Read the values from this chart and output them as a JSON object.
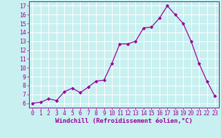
{
  "x": [
    0,
    1,
    2,
    3,
    4,
    5,
    6,
    7,
    8,
    9,
    10,
    11,
    12,
    13,
    14,
    15,
    16,
    17,
    18,
    19,
    20,
    21,
    22,
    23
  ],
  "y": [
    6.0,
    6.1,
    6.5,
    6.3,
    7.3,
    7.7,
    7.2,
    7.8,
    8.5,
    8.6,
    10.5,
    12.7,
    12.7,
    13.0,
    14.5,
    14.6,
    15.6,
    17.0,
    16.0,
    15.0,
    13.0,
    10.5,
    8.5,
    6.8
  ],
  "line_color": "#990099",
  "marker": "D",
  "marker_size": 2.2,
  "xlabel": "Windchill (Refroidissement éolien,°C)",
  "xlim": [
    -0.5,
    23.5
  ],
  "ylim": [
    5.5,
    17.5
  ],
  "yticks": [
    6,
    7,
    8,
    9,
    10,
    11,
    12,
    13,
    14,
    15,
    16,
    17
  ],
  "xticks": [
    0,
    1,
    2,
    3,
    4,
    5,
    6,
    7,
    8,
    9,
    10,
    11,
    12,
    13,
    14,
    15,
    16,
    17,
    18,
    19,
    20,
    21,
    22,
    23
  ],
  "bg_color": "#c8f0f0",
  "grid_color": "#ffffff",
  "tick_label_color": "#990099",
  "xlabel_color": "#990099",
  "axis_label_fontsize": 6.5,
  "tick_fontsize": 5.8,
  "linewidth": 0.9
}
